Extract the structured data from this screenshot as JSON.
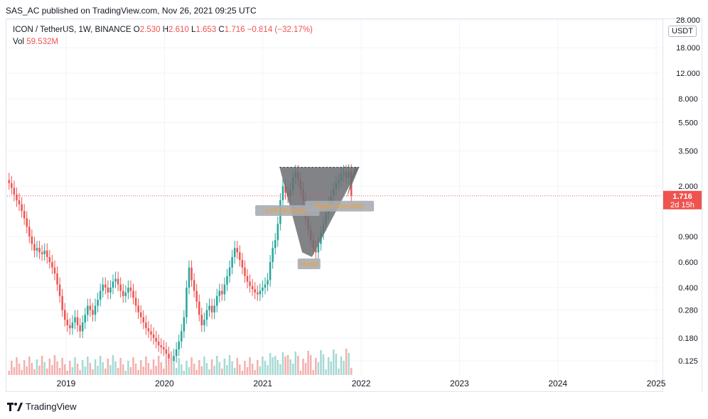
{
  "published_line": "SAS_AC published on TradingView.com, Nov 26, 2021 09:25 UTC",
  "legend": {
    "symbol": "ICON / TetherUS, 1W, BINANCE",
    "o_label": "O",
    "o_value": "2.530",
    "h_label": "H",
    "h_value": "2.610",
    "l_label": "L",
    "l_value": "1.653",
    "c_label": "C",
    "c_value": "1.716",
    "change": "−0.814 (−32.17%)",
    "vol_label": "Vol",
    "vol_value": "59.532M"
  },
  "currency_button": "USDT",
  "price_badge": {
    "price": "1.716",
    "countdown": "2d 15h"
  },
  "footer_brand": "TradingView",
  "colors": {
    "up": "#26a69a",
    "down": "#ef5350",
    "pattern": "#6b6d72",
    "annotation": "#f0a030"
  },
  "chart_data": {
    "type": "candlestick",
    "scale": "log",
    "ylim": [
      0.1,
      28
    ],
    "y_ticks": [
      {
        "value": 28,
        "label": "28.000"
      },
      {
        "value": 18,
        "label": "18.000"
      },
      {
        "value": 12,
        "label": "12.000"
      },
      {
        "value": 8,
        "label": "8.000"
      },
      {
        "value": 5.5,
        "label": "5.500"
      },
      {
        "value": 3.5,
        "label": "3.500"
      },
      {
        "value": 2,
        "label": "2.000"
      },
      {
        "value": 0.9,
        "label": "0.900"
      },
      {
        "value": 0.6,
        "label": "0.600"
      },
      {
        "value": 0.4,
        "label": "0.400"
      },
      {
        "value": 0.28,
        "label": "0.280"
      },
      {
        "value": 0.18,
        "label": "0.180"
      },
      {
        "value": 0.125,
        "label": "0.125"
      }
    ],
    "x_ticks": [
      "2019",
      "2020",
      "2021",
      "2022",
      "2023",
      "2024",
      "2025"
    ],
    "x_tick_years": [
      2019,
      2020,
      2021,
      2022,
      2023,
      2024,
      2025
    ],
    "last_price": 1.716,
    "closes": [
      2.1,
      1.95,
      1.75,
      1.6,
      1.5,
      1.35,
      1.2,
      1.05,
      0.9,
      0.8,
      0.72,
      0.75,
      0.7,
      0.68,
      0.72,
      0.65,
      0.6,
      0.55,
      0.5,
      0.42,
      0.35,
      0.28,
      0.24,
      0.22,
      0.21,
      0.23,
      0.25,
      0.22,
      0.2,
      0.23,
      0.26,
      0.3,
      0.28,
      0.26,
      0.3,
      0.33,
      0.38,
      0.42,
      0.4,
      0.37,
      0.4,
      0.44,
      0.46,
      0.42,
      0.38,
      0.35,
      0.37,
      0.4,
      0.38,
      0.34,
      0.3,
      0.27,
      0.25,
      0.23,
      0.21,
      0.2,
      0.19,
      0.18,
      0.17,
      0.16,
      0.155,
      0.15,
      0.14,
      0.13,
      0.125,
      0.135,
      0.15,
      0.17,
      0.2,
      0.25,
      0.4,
      0.55,
      0.45,
      0.38,
      0.32,
      0.26,
      0.22,
      0.24,
      0.28,
      0.3,
      0.27,
      0.3,
      0.35,
      0.38,
      0.36,
      0.42,
      0.48,
      0.55,
      0.65,
      0.75,
      0.7,
      0.62,
      0.55,
      0.48,
      0.44,
      0.41,
      0.39,
      0.37,
      0.36,
      0.38,
      0.4,
      0.42,
      0.45,
      0.6,
      0.75,
      0.85,
      1.1,
      1.6,
      2.0,
      1.8,
      1.7,
      1.9,
      2.3,
      2.5,
      2.2,
      1.9,
      1.6,
      1.2,
      1.0,
      0.85,
      0.75,
      0.7,
      0.8,
      0.95,
      1.1,
      1.3,
      1.5,
      1.7,
      1.9,
      2.1,
      2.2,
      2.4,
      2.5,
      2.3,
      2.53,
      1.716
    ],
    "volume_label": "Vol",
    "annotations": [
      {
        "text": "Left Shoulder",
        "time": 2021.25,
        "price": 1.35
      },
      {
        "text": "Head",
        "time": 2021.47,
        "price": 0.58
      },
      {
        "text": "Right Shoulder",
        "time": 2021.78,
        "price": 1.45
      }
    ],
    "pattern_points": [
      {
        "time": 2021.17,
        "price": 2.7
      },
      {
        "time": 2021.4,
        "price": 0.7
      },
      {
        "time": 2021.5,
        "price": 0.65
      },
      {
        "time": 2021.98,
        "price": 2.7
      },
      {
        "time": 2021.85,
        "price": 1.65
      }
    ]
  }
}
